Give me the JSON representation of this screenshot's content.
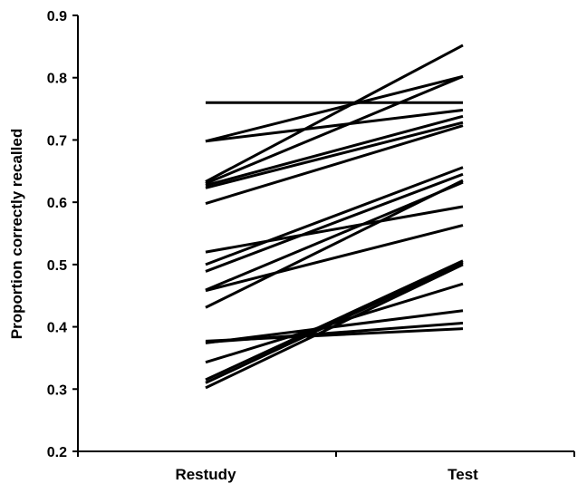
{
  "chart_data": {
    "type": "line",
    "title": "",
    "xlabel": "",
    "ylabel": "Proportion correctly recalled",
    "categories": [
      "Restudy",
      "Test"
    ],
    "ylim": [
      0.2,
      0.9
    ],
    "yticks": [
      "0.2",
      "0.3",
      "0.4",
      "0.5",
      "0.6",
      "0.7",
      "0.8",
      "0.9"
    ],
    "grid": false,
    "legend": "none",
    "line_color": "#000000",
    "series": [
      {
        "values": [
          0.76,
          0.76
        ]
      },
      {
        "values": [
          0.698,
          0.748
        ]
      },
      {
        "values": [
          0.698,
          0.802
        ]
      },
      {
        "values": [
          0.633,
          0.852
        ]
      },
      {
        "values": [
          0.63,
          0.802
        ]
      },
      {
        "values": [
          0.627,
          0.738
        ]
      },
      {
        "values": [
          0.623,
          0.728
        ]
      },
      {
        "values": [
          0.598,
          0.723
        ]
      },
      {
        "values": [
          0.52,
          0.593
        ]
      },
      {
        "values": [
          0.5,
          0.656
        ]
      },
      {
        "values": [
          0.489,
          0.645
        ]
      },
      {
        "values": [
          0.459,
          0.632
        ]
      },
      {
        "values": [
          0.458,
          0.563
        ]
      },
      {
        "values": [
          0.431,
          0.635
        ]
      },
      {
        "values": [
          0.377,
          0.397
        ]
      },
      {
        "values": [
          0.375,
          0.406
        ]
      },
      {
        "values": [
          0.374,
          0.426
        ]
      },
      {
        "values": [
          0.343,
          0.469
        ]
      },
      {
        "values": [
          0.315,
          0.506
        ]
      },
      {
        "values": [
          0.31,
          0.503
        ]
      },
      {
        "values": [
          0.302,
          0.5
        ]
      }
    ]
  }
}
